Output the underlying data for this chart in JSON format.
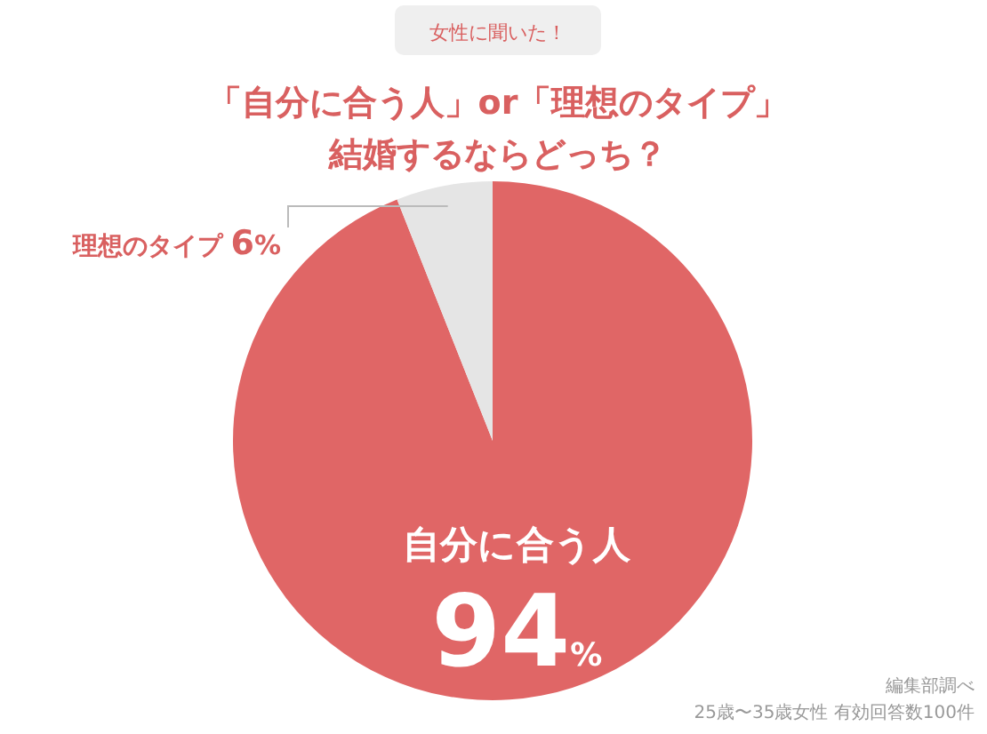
{
  "chart_data": {
    "type": "pie",
    "subtitle": "女性に聞いた！",
    "title": "「自分に合う人」or「理想のタイプ」結婚するならどっち？",
    "categories": [
      "自分に合う人",
      "理想のタイプ"
    ],
    "values": [
      94,
      6
    ],
    "colors": [
      "#e06666",
      "#e5e5e5"
    ],
    "value_labels": [
      "94%",
      "6%"
    ],
    "annotations": [
      "編集部調べ",
      "25歳〜35歳女性 有効回答数100件"
    ]
  }
}
